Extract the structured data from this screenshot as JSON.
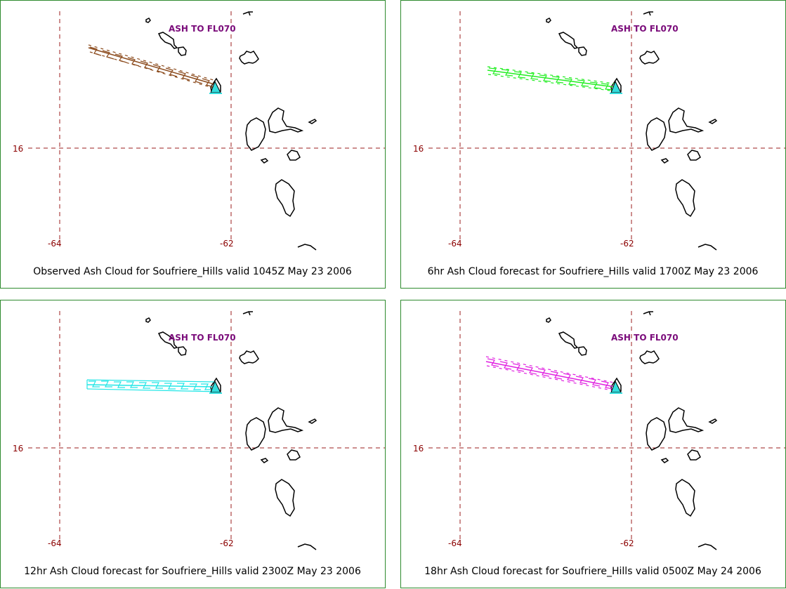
{
  "panels": [
    {
      "ash_label": "ASH TO FL070",
      "caption": "Observed Ash Cloud for Soufriere_Hills valid 1045Z May 23 2006",
      "cloud_color": "#8b4a1c",
      "lat_label": "16",
      "lon_labels": [
        "-64",
        "-62"
      ]
    },
    {
      "ash_label": "ASH TO FL070",
      "caption": "6hr Ash Cloud forecast for Soufriere_Hills valid 1700Z May 23 2006",
      "cloud_color": "#22ee22",
      "lat_label": "16",
      "lon_labels": [
        "-64",
        "-62"
      ]
    },
    {
      "ash_label": "ASH TO FL070",
      "caption": "12hr Ash Cloud forecast for Soufriere_Hills valid 2300Z May 23 2006",
      "cloud_color": "#22e6e6",
      "lat_label": "16",
      "lon_labels": [
        "-64",
        "-62"
      ]
    },
    {
      "ash_label": "ASH TO FL070",
      "caption": "18hr Ash Cloud forecast for Soufriere_Hills valid 0500Z May 24 2006",
      "cloud_color": "#e020e0",
      "lat_label": "16",
      "lon_labels": [
        "-64",
        "-62"
      ]
    }
  ],
  "colors": {
    "frame": "#2e8b2e",
    "grid": "#9b1c1c",
    "label_red": "#8b0000",
    "ash_label": "#7a0b7a",
    "volcano": "#33dddd"
  }
}
